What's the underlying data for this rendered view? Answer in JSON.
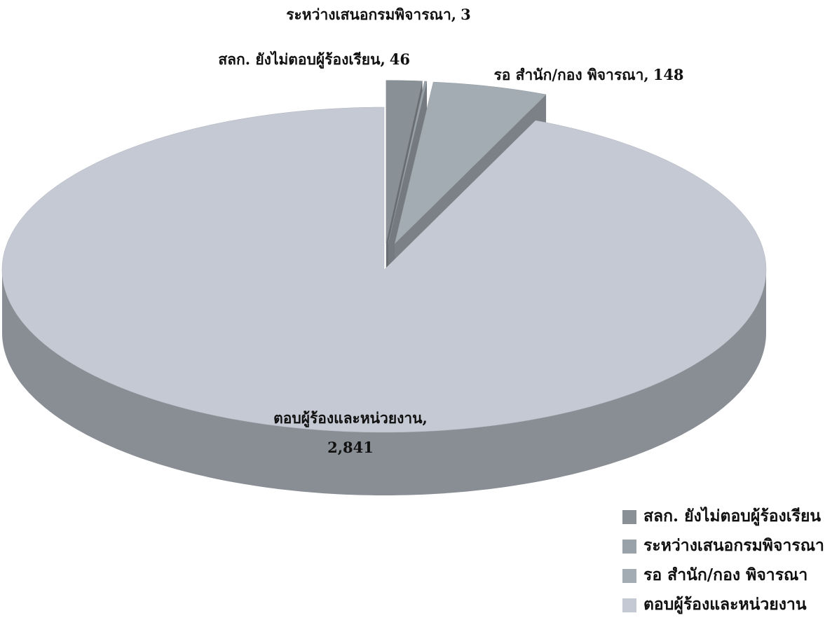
{
  "chart_data": {
    "type": "pie",
    "categories": [
      "สลก. ยังไม่ตอบผู้ร้องเรียน",
      "ระหว่างเสนอกรมพิจารณา",
      "รอ สำนัก/กอง พิจารณา",
      "ตอบผู้ร้องและหน่วยงาน"
    ],
    "values": [
      46,
      3,
      148,
      2841
    ],
    "value_labels": [
      "46",
      "3",
      "148",
      "2,841"
    ],
    "label_separator": ",",
    "colors": [
      "#8a9196",
      "#9aa2a9",
      "#a4acb3",
      "#c4c9d3"
    ],
    "legend": "bottom-right"
  }
}
